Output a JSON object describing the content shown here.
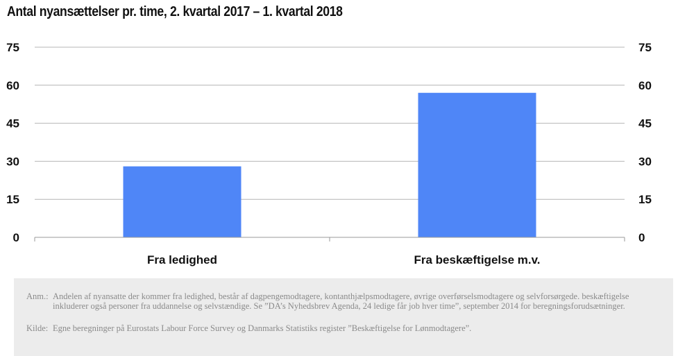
{
  "chart_data": {
    "type": "bar",
    "title": "Antal nyansættelser pr. time, 2. kvartal 2017 – 1. kvartal 2018",
    "categories": [
      "Fra ledighed",
      "Fra beskæftigelse m.v."
    ],
    "values": [
      28,
      57
    ],
    "ylim": [
      0,
      75
    ],
    "yticks": [
      "0",
      "15",
      "30",
      "45",
      "60",
      "75"
    ],
    "secondary_axis": true,
    "grid": true,
    "bar_color": "#4f86f7"
  },
  "notes": {
    "anm_label": "Anm.:",
    "anm_text": "Andelen af nyansatte der kommer fra ledighed, består af dagpengemodtagere, kontanthjælpsmodtagere, øvrige overførselsmodtagere og selvforsørgede. beskæftigelse inkluderer også personer fra uddannelse og selvstændige. Se ”DA’s Nyhedsbrev Agenda, 24 ledige får job hver time”, september 2014 for beregningsforudsætninger.",
    "kilde_label": "Kilde:",
    "kilde_text": "Egne beregninger på Eurostats Labour Force Survey og Danmarks Statistiks register ”Beskæftigelse for Lønmodtagere”."
  }
}
